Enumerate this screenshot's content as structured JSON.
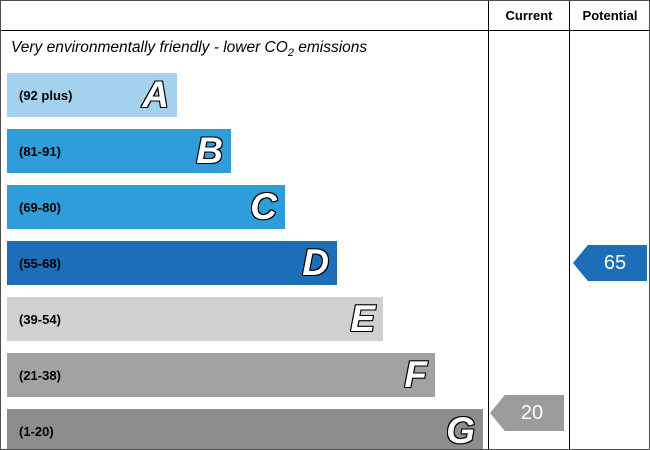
{
  "chart_data": {
    "type": "bar",
    "title": "Very environmentally friendly - lower CO2 emissions",
    "categories": [
      "A",
      "B",
      "C",
      "D",
      "E",
      "F",
      "G"
    ],
    "bands": [
      {
        "letter": "A",
        "range_label": "(92 plus)",
        "min": 92,
        "max": 100,
        "color": "#a4d2ee"
      },
      {
        "letter": "B",
        "range_label": "(81-91)",
        "min": 81,
        "max": 91,
        "color": "#2f9dda"
      },
      {
        "letter": "C",
        "range_label": "(69-80)",
        "min": 69,
        "max": 80,
        "color": "#2f9dda"
      },
      {
        "letter": "D",
        "range_label": "(55-68)",
        "min": 55,
        "max": 68,
        "color": "#1b6eb7"
      },
      {
        "letter": "E",
        "range_label": "(39-54)",
        "min": 39,
        "max": 54,
        "color": "#d0d0d0"
      },
      {
        "letter": "F",
        "range_label": "(21-38)",
        "min": 21,
        "max": 38,
        "color": "#a2a2a2"
      },
      {
        "letter": "G",
        "range_label": "(1-20)",
        "min": 1,
        "max": 20,
        "color": "#8d8d8d"
      }
    ],
    "ratings": {
      "current": {
        "label": "Current",
        "value": 20,
        "band": "G",
        "color": "#9b9b9b"
      },
      "potential": {
        "label": "Potential",
        "value": 65,
        "band": "D",
        "color": "#1b6eb7"
      }
    },
    "legend_position": "top-right-columns",
    "grid": false
  },
  "header": {
    "current": "Current",
    "potential": "Potential"
  },
  "title": {
    "before_sub": "Very environmentally friendly - lower CO",
    "sub": "2",
    "after_sub": " emissions"
  }
}
